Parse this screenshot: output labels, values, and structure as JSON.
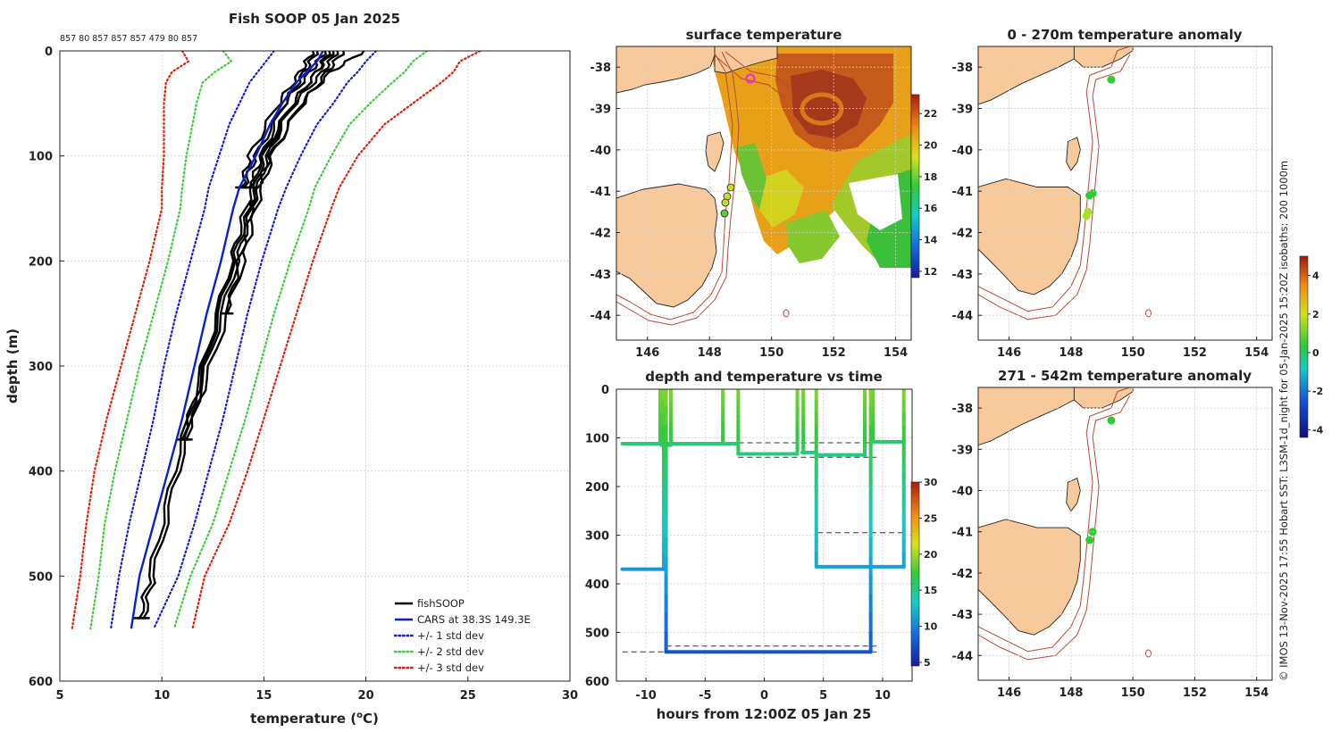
{
  "credit": "© IMOS 13-Nov-2025 17:55 Hobart SST: L3SM-1d_night for 05-Jan-2025 15:20Z isobaths: 200  1000m",
  "colors": {
    "fishsoop": "#000000",
    "cars": "#0a1fd6",
    "std1": "#1a1ad6",
    "std2": "#3ccf3c",
    "std3": "#e0200c",
    "land": "#f8c99a",
    "isobath": "#b64a3a"
  },
  "chart_data": [
    {
      "id": "profile",
      "type": "line",
      "title": "Fish SOOP 05 Jan 2025",
      "top_labels": "857 80 857 857 857 479 80 857",
      "xlabel": "temperature (",
      "xlabel_sup": "o",
      "xlabel_end": "C)",
      "ylabel": "depth (m)",
      "xlim": [
        5,
        30
      ],
      "ylim": [
        600,
        0
      ],
      "xticks": [
        "5",
        "10",
        "15",
        "20",
        "25",
        "30"
      ],
      "yticks": [
        "0",
        "100",
        "200",
        "300",
        "400",
        "500",
        "600"
      ],
      "legend": [
        {
          "label": "fishSOOP",
          "color": "#000000",
          "dash": "solid"
        },
        {
          "label": "CARS at 38.3S 149.3E",
          "color": "#0a1fd6",
          "dash": "solid"
        },
        {
          "label": "+/- 1 std dev",
          "color": "#1a1ad6",
          "dash": "dot"
        },
        {
          "label": "+/- 2 std dev",
          "color": "#3ccf3c",
          "dash": "dot"
        },
        {
          "label": "+/- 3 std dev",
          "color": "#e0200c",
          "dash": "dot"
        }
      ],
      "depths": [
        0,
        10,
        20,
        30,
        50,
        70,
        100,
        130,
        150,
        200,
        250,
        300,
        350,
        400,
        450,
        500,
        550
      ],
      "cars_mean": [
        17.9,
        17.6,
        17.1,
        16.6,
        15.9,
        15.3,
        14.6,
        13.8,
        13.5,
        12.9,
        12.2,
        11.6,
        11.0,
        10.3,
        9.6,
        8.9,
        8.5
      ],
      "std1": {
        "lower": [
          15.5,
          15.1,
          14.7,
          14.3,
          13.8,
          13.3,
          12.8,
          12.3,
          12.1,
          11.4,
          10.7,
          10.1,
          9.6,
          9.0,
          8.4,
          7.9,
          7.5
        ],
        "upper": [
          20.5,
          20.0,
          19.6,
          19.1,
          18.4,
          17.6,
          16.8,
          16.1,
          15.7,
          14.9,
          14.2,
          13.6,
          13.0,
          12.3,
          11.6,
          10.8,
          9.6
        ]
      },
      "std2": {
        "lower": [
          13.0,
          13.4,
          12.6,
          12.0,
          11.7,
          11.5,
          11.2,
          11.0,
          10.9,
          10.3,
          9.6,
          8.9,
          8.3,
          7.7,
          7.2,
          6.9,
          6.5
        ],
        "upper": [
          23.0,
          22.3,
          21.9,
          21.3,
          20.2,
          19.2,
          18.3,
          17.5,
          17.2,
          16.3,
          15.5,
          14.8,
          14.1,
          13.3,
          12.5,
          11.4,
          10.6
        ]
      },
      "std3": {
        "lower": [
          11.0,
          11.3,
          10.5,
          10.2,
          10.1,
          10.1,
          10.1,
          10.0,
          10.0,
          9.4,
          8.7,
          8.0,
          7.3,
          6.7,
          6.3,
          6.0,
          5.6
        ],
        "upper": [
          25.6,
          24.6,
          24.3,
          23.7,
          22.3,
          20.9,
          19.6,
          18.7,
          18.3,
          17.4,
          16.6,
          15.8,
          15.0,
          14.2,
          13.3,
          12.1,
          11.5
        ]
      },
      "fishsoop_profiles": [
        {
          "depths": [
            0,
            20,
            50,
            100,
            150,
            200,
            300,
            400,
            500,
            540
          ],
          "temps": [
            18.2,
            17.6,
            16.4,
            15.2,
            14.4,
            13.7,
            12.2,
            10.8,
            9.6,
            9.1
          ]
        },
        {
          "depths": [
            0,
            20,
            50,
            100,
            150,
            200,
            300,
            400,
            500,
            540
          ],
          "temps": [
            17.6,
            17.0,
            16.0,
            14.9,
            14.1,
            13.4,
            12.0,
            10.6,
            9.4,
            8.9
          ]
        },
        {
          "depths": [
            0,
            20,
            50,
            100,
            150,
            200,
            300,
            370
          ],
          "temps": [
            19.9,
            18.3,
            16.8,
            15.4,
            14.6,
            14.0,
            12.4,
            11.2
          ]
        },
        {
          "depths": [
            0,
            20,
            50,
            100,
            150,
            200,
            300,
            370
          ],
          "temps": [
            18.6,
            17.9,
            16.5,
            15.0,
            14.3,
            13.5,
            12.1,
            11.0
          ]
        },
        {
          "depths": [
            0,
            20,
            50,
            100,
            130
          ],
          "temps": [
            18.0,
            17.3,
            16.0,
            14.6,
            14.0
          ]
        },
        {
          "depths": [
            0,
            20,
            50,
            100,
            130
          ],
          "temps": [
            18.4,
            17.6,
            16.4,
            14.9,
            14.3
          ]
        },
        {
          "depths": [
            0,
            20,
            50,
            100,
            130,
            150,
            200,
            250
          ],
          "temps": [
            18.9,
            18.1,
            16.9,
            15.3,
            14.7,
            14.4,
            13.8,
            13.2
          ]
        },
        {
          "depths": [
            0,
            20,
            50,
            100,
            130
          ],
          "temps": [
            17.4,
            16.8,
            15.7,
            14.3,
            13.9
          ]
        }
      ]
    },
    {
      "id": "surface-temp",
      "type": "heatmap",
      "title": "surface temperature",
      "xticks": [
        "146",
        "148",
        "150",
        "152",
        "154"
      ],
      "yticks": [
        "-38",
        "-39",
        "-40",
        "-41",
        "-42",
        "-43",
        "-44"
      ],
      "xlim": [
        145,
        154.5
      ],
      "ylim": [
        -44.6,
        -37.5
      ],
      "colorbar": {
        "ticks": [
          "22",
          "20",
          "18",
          "16",
          "14",
          "12"
        ],
        "range": [
          11.6,
          23.2
        ]
      }
    },
    {
      "id": "depth-time",
      "type": "line",
      "title": "depth and temperature vs time",
      "xlabel": "hours from 12:00Z 05 Jan 25",
      "xlim": [
        -12.5,
        12.5
      ],
      "ylim": [
        600,
        0
      ],
      "xticks": [
        "-10",
        "-5",
        "0",
        "5",
        "10"
      ],
      "yticks": [
        "0",
        "100",
        "200",
        "300",
        "400",
        "500",
        "600"
      ],
      "colorbar": {
        "ticks": [
          "30",
          "25",
          "20",
          "15",
          "10",
          "5"
        ],
        "range": [
          4.5,
          30
        ]
      },
      "bottom_segments": [
        {
          "t": [
            -12,
            -8.7
          ],
          "depth": 112,
          "temp": 15.5
        },
        {
          "t": [
            -8.7,
            -7.9
          ],
          "depth": 115,
          "temp": 16.2
        },
        {
          "t": [
            -7.9,
            -2.3
          ],
          "depth": 112,
          "temp": 15.5
        },
        {
          "t": [
            -2.2,
            2.8
          ],
          "depth": 133,
          "temp": 15.2
        },
        {
          "t": [
            3.2,
            4.3
          ],
          "depth": 130,
          "temp": 15.2
        },
        {
          "t": [
            4.5,
            8.5
          ],
          "depth": 135,
          "temp": 15.0
        },
        {
          "t": [
            -12,
            -8.5
          ],
          "depth": 370,
          "temp": 11.0
        },
        {
          "t": [
            -8.3,
            9.0
          ],
          "depth": 540,
          "temp": 7.6
        },
        {
          "t": [
            4.5,
            11.8
          ],
          "depth": 365,
          "temp": 11.3
        },
        {
          "t": [
            9.2,
            11.8
          ],
          "depth": 108,
          "temp": 15.8
        }
      ],
      "verticals": [
        {
          "t": -8.8,
          "d": [
            0,
            112
          ]
        },
        {
          "t": -8.5,
          "d": [
            0,
            370
          ]
        },
        {
          "t": -8.3,
          "d": [
            0,
            540
          ]
        },
        {
          "t": -7.9,
          "d": [
            0,
            115
          ]
        },
        {
          "t": -3.5,
          "d": [
            0,
            112
          ]
        },
        {
          "t": -2.2,
          "d": [
            0,
            133
          ]
        },
        {
          "t": 2.8,
          "d": [
            0,
            130
          ]
        },
        {
          "t": 3.3,
          "d": [
            0,
            130
          ]
        },
        {
          "t": 4.4,
          "d": [
            0,
            365
          ]
        },
        {
          "t": 8.5,
          "d": [
            0,
            135
          ]
        },
        {
          "t": 9.0,
          "d": [
            0,
            540
          ]
        },
        {
          "t": 9.2,
          "d": [
            0,
            108
          ]
        },
        {
          "t": 11.8,
          "d": [
            0,
            365
          ]
        }
      ],
      "dashed_refs": [
        {
          "t": [
            -12,
            12
          ],
          "depth": 110
        },
        {
          "t": [
            -2.2,
            9.5
          ],
          "depth": 140
        },
        {
          "t": [
            4.5,
            12
          ],
          "depth": 295
        },
        {
          "t": [
            -8.3,
            9.5
          ],
          "depth": 528
        },
        {
          "t": [
            -12,
            9.5
          ],
          "depth": 540
        }
      ]
    },
    {
      "id": "anom-top",
      "type": "scatter",
      "title": "0 - 270m temperature anomaly",
      "xticks": [
        "146",
        "148",
        "150",
        "152",
        "154"
      ],
      "yticks": [
        "-38",
        "-39",
        "-40",
        "-41",
        "-42",
        "-43",
        "-44"
      ],
      "points": [
        {
          "lon": 149.3,
          "lat": -38.3,
          "value": 0.0
        },
        {
          "lon": 148.6,
          "lat": -41.1,
          "value": 0.2
        },
        {
          "lon": 148.7,
          "lat": -41.05,
          "value": 0.0
        },
        {
          "lon": 148.55,
          "lat": -41.5,
          "value": 1.2
        },
        {
          "lon": 148.5,
          "lat": -41.6,
          "value": 1.0
        }
      ]
    },
    {
      "id": "anom-bottom",
      "type": "scatter",
      "title": "271 - 542m temperature anomaly",
      "xticks": [
        "146",
        "148",
        "150",
        "152",
        "154"
      ],
      "yticks": [
        "-38",
        "-39",
        "-40",
        "-41",
        "-42",
        "-43",
        "-44"
      ],
      "points": [
        {
          "lon": 149.3,
          "lat": -38.3,
          "value": 0.0
        },
        {
          "lon": 148.7,
          "lat": -41.0,
          "value": 0.3
        },
        {
          "lon": 148.6,
          "lat": -41.2,
          "value": 0.1
        }
      ],
      "colorbar": {
        "ticks": [
          "4",
          "2",
          "0",
          "-2",
          "-4"
        ],
        "range": [
          -4.4,
          5.0
        ]
      }
    }
  ]
}
